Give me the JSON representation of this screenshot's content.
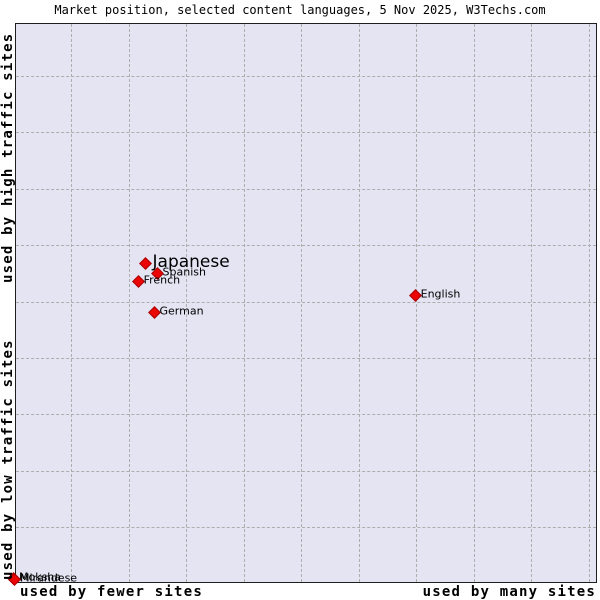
{
  "title": "Market position, selected content languages, 5 Nov 2025, W3Techs.com",
  "axes": {
    "y_top": "used by high traffic sites",
    "y_bottom": "used by low traffic sites",
    "x_left": "used by fewer sites",
    "x_right": "used by many sites"
  },
  "colors": {
    "plot_background": "#e4e4f3",
    "marker_fill": "#ec0505",
    "marker_edge": "#a80000",
    "gridline": "#adadad",
    "text": "#000000"
  },
  "chart_data": {
    "type": "scatter",
    "title": "Market position, selected content languages, 5 Nov 2025, W3Techs.com",
    "xlabel": "used by fewer sites (left) → used by many sites (right)",
    "ylabel": "used by low traffic sites (bottom) → used by high traffic sites (top)",
    "grid": "dashed",
    "legend": false,
    "marker": {
      "shape": "diamond",
      "color": "#ec0505"
    },
    "position_units": "fraction_of_plot_area_from_top_left",
    "points": [
      {
        "label": "Japanese",
        "fx": 0.2216,
        "fy": 0.4286,
        "emphasis": true
      },
      {
        "label": "Spanish",
        "fx": 0.2423,
        "fy": 0.4464,
        "emphasis": false
      },
      {
        "label": "French",
        "fx": 0.2096,
        "fy": 0.4607,
        "emphasis": false
      },
      {
        "label": "German",
        "fx": 0.2371,
        "fy": 0.5161,
        "emphasis": false
      },
      {
        "label": "English",
        "fx": 0.6873,
        "fy": 0.4857,
        "emphasis": false
      },
      {
        "label": "Moksha",
        "fx": -0.0052,
        "fy": 0.9929,
        "emphasis": false
      },
      {
        "label": "Mirandese",
        "fx": -0.0034,
        "fy": 0.9946,
        "emphasis": false
      }
    ]
  }
}
